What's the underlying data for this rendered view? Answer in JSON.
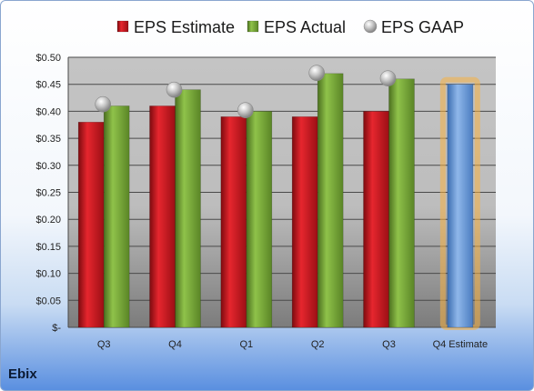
{
  "company": "Ebix",
  "chart_data": {
    "type": "bar",
    "categories": [
      "Q3",
      "Q4",
      "Q1",
      "Q2",
      "Q3",
      "Q4 Estimate"
    ],
    "series": [
      {
        "name": "EPS Estimate",
        "values": [
          0.38,
          0.41,
          0.39,
          0.39,
          0.4,
          null
        ],
        "color": "#c8141d"
      },
      {
        "name": "EPS Actual",
        "values": [
          0.41,
          0.44,
          0.4,
          0.47,
          0.46,
          null
        ],
        "color": "#74a335"
      },
      {
        "name": "EPS GAAP",
        "type": "marker",
        "values": [
          0.413,
          0.44,
          0.402,
          0.471,
          0.461,
          null
        ],
        "color": "#a9a9a9"
      },
      {
        "name": "Q4 Estimate",
        "show_in_legend": false,
        "values": [
          null,
          null,
          null,
          null,
          null,
          0.45
        ],
        "color": "#5b8fd4",
        "highlight": "#f5b041"
      }
    ],
    "y_ticks": [
      "$-",
      "$0.05",
      "$0.10",
      "$0.15",
      "$0.20",
      "$0.25",
      "$0.30",
      "$0.35",
      "$0.40",
      "$0.45",
      "$0.50"
    ],
    "ylim": [
      0,
      0.5
    ],
    "grid": true,
    "legend_position": "top"
  }
}
